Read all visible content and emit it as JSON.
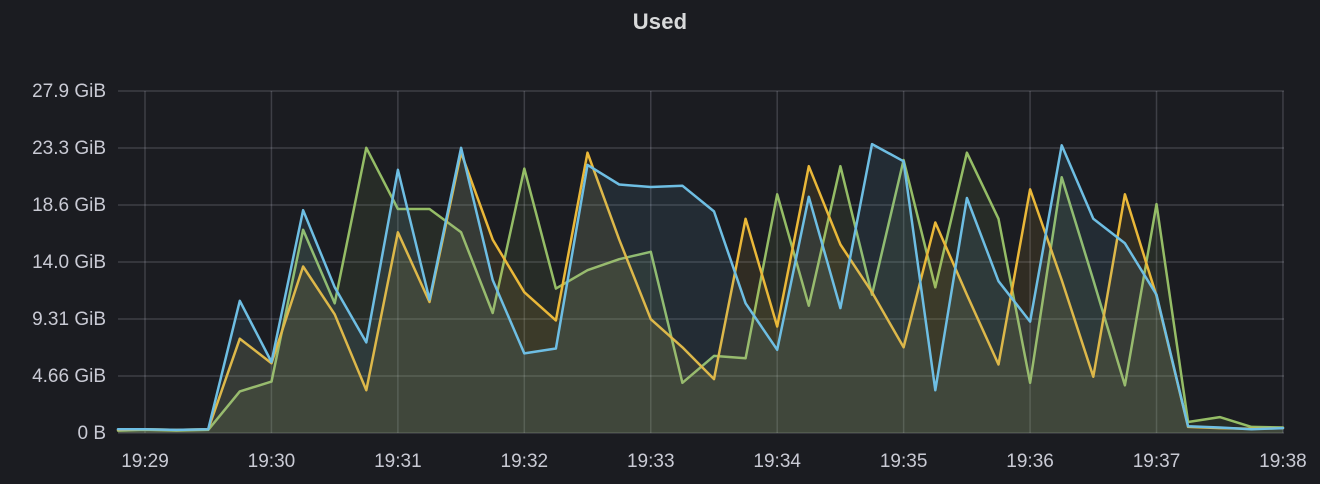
{
  "panel": {
    "title": "Used"
  },
  "colors": {
    "background": "#1b1c21",
    "grid": "rgba(204,204,220,0.20)",
    "tick_text": "#c9cad4",
    "title_text": "#d8d9da",
    "series_green": "#95bd66",
    "series_yellow": "#eab839",
    "series_blue": "#6ebee3"
  },
  "chart_data": {
    "type": "line",
    "title": "Used",
    "unit": "bytes (GiB)",
    "grid": true,
    "legend": "none",
    "sample_interval_seconds": 15,
    "start_time": "19:28:45",
    "x_axis": {
      "tick_labels": [
        "19:29",
        "19:30",
        "19:31",
        "19:32",
        "19:33",
        "19:34",
        "19:35",
        "19:36",
        "19:37",
        "19:38"
      ]
    },
    "y_axis": {
      "tick_labels": [
        "27.9 GiB",
        "23.3 GiB",
        "18.6 GiB",
        "14.0 GiB",
        "9.31 GiB",
        "4.66 GiB",
        "0 B"
      ],
      "tick_values_gib": [
        27.94,
        23.28,
        18.63,
        13.97,
        9.31,
        4.66,
        0
      ],
      "min": 0,
      "max_gib": 27.94
    },
    "series": [
      {
        "name": "series-green",
        "color": "#95bd66",
        "fill_opacity": 0.1,
        "values_gib": [
          0.2,
          0.25,
          0.2,
          0.25,
          3.4,
          4.2,
          16.6,
          10.6,
          23.3,
          18.3,
          18.3,
          16.4,
          9.8,
          21.6,
          11.8,
          13.3,
          14.2,
          14.8,
          4.1,
          6.3,
          6.1,
          19.5,
          10.4,
          21.8,
          11.3,
          22.3,
          11.9,
          22.9,
          17.5,
          4.1,
          20.9,
          12.5,
          3.9,
          18.7,
          0.9,
          1.3,
          0.5,
          0.45
        ]
      },
      {
        "name": "series-yellow",
        "color": "#eab839",
        "fill_opacity": 0.1,
        "values_gib": [
          0.25,
          0.3,
          0.25,
          0.3,
          7.7,
          5.7,
          13.6,
          9.7,
          3.5,
          16.4,
          10.7,
          22.9,
          15.8,
          11.5,
          9.2,
          22.9,
          15.8,
          9.3,
          7.0,
          4.4,
          17.5,
          8.7,
          21.8,
          15.4,
          11.5,
          7.0,
          17.2,
          11.3,
          5.6,
          19.9,
          12.5,
          4.6,
          19.5,
          11.2,
          0.5,
          0.4,
          0.35,
          0.4
        ]
      },
      {
        "name": "series-blue",
        "color": "#6ebee3",
        "fill_opacity": 0.1,
        "values_gib": [
          0.3,
          0.3,
          0.25,
          0.3,
          10.8,
          5.8,
          18.2,
          11.9,
          7.4,
          21.5,
          10.9,
          23.3,
          12.5,
          6.5,
          6.9,
          21.9,
          20.3,
          20.1,
          20.2,
          18.1,
          10.6,
          6.8,
          19.3,
          10.2,
          23.6,
          22.2,
          3.5,
          19.2,
          12.4,
          9.1,
          23.5,
          17.5,
          15.5,
          11.3,
          0.55,
          0.45,
          0.3,
          0.4
        ]
      }
    ]
  }
}
